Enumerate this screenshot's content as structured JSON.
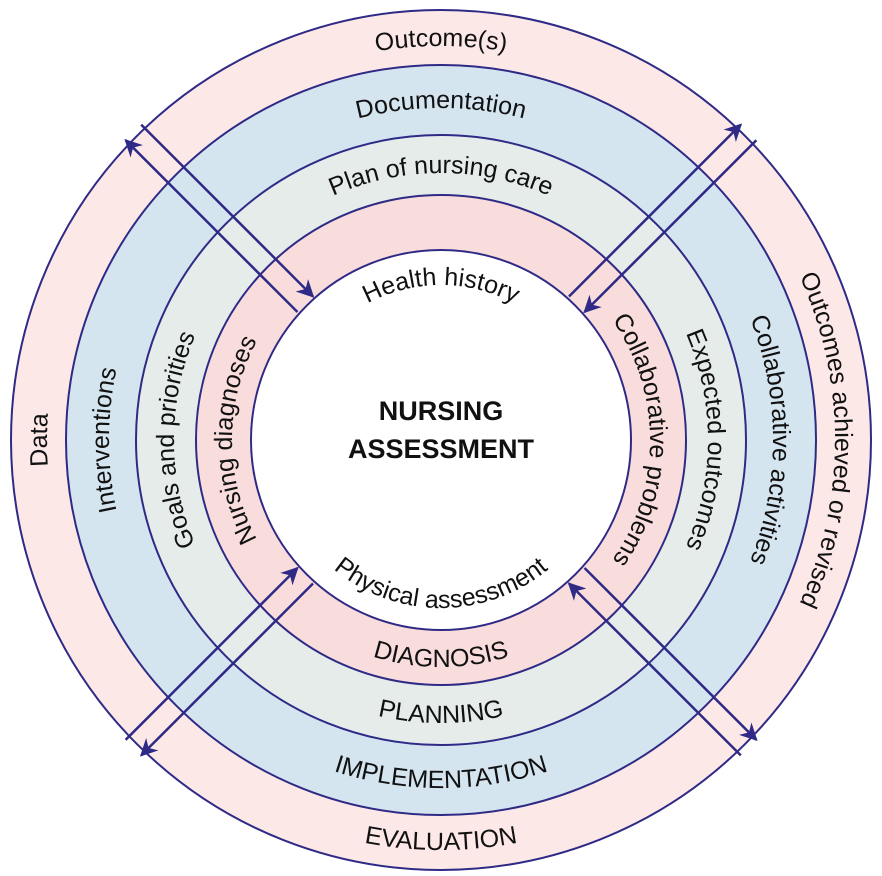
{
  "center": {
    "lines": [
      "NURSING",
      "ASSESSMENT"
    ]
  },
  "rings": [
    {
      "name": "EVALUATION",
      "top": "Outcome(s)",
      "left": "Data",
      "right": "Outcomes achieved or revised"
    },
    {
      "name": "IMPLEMENTATION",
      "top": "Documentation",
      "left": "Interventions",
      "right": "Collaborative activities"
    },
    {
      "name": "PLANNING",
      "top": "Plan of nursing care",
      "left": "Goals and priorities",
      "right": "Expected outcomes"
    },
    {
      "name": "DIAGNOSIS",
      "left": "Nursing diagnoses",
      "right": "Collaborative problems"
    }
  ],
  "inner": {
    "top": "Health history",
    "bottom": "Physical assessment"
  }
}
